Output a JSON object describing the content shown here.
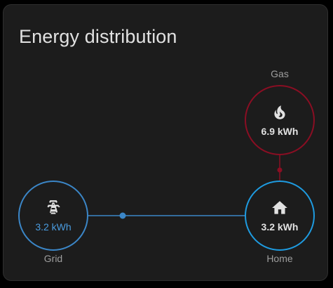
{
  "card": {
    "title": "Energy distribution"
  },
  "nodes": {
    "gas": {
      "label": "Gas",
      "value": "6.9 kWh",
      "icon": "fire-icon"
    },
    "grid": {
      "label": "Grid",
      "value": "3.2 kWh",
      "icon": "transmission-tower-icon"
    },
    "home": {
      "label": "Home",
      "value": "3.2 kWh",
      "icon": "home-icon"
    }
  },
  "colors": {
    "card_background": "#1c1c1c",
    "gas": "#8a0e23",
    "grid": "#3b86c7",
    "home": "#1e9be0",
    "text": "#e1e1e1",
    "label": "#9e9e9e"
  }
}
